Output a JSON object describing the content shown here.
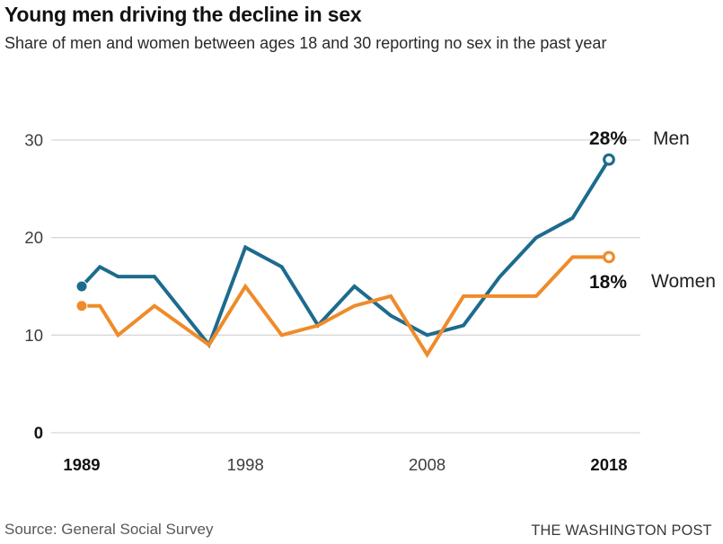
{
  "header": {
    "title": "Young men driving the decline in sex",
    "subtitle": "Share of men and women between ages 18 and 30 reporting no sex in the past year"
  },
  "chart_data": {
    "type": "line",
    "title": "Young men driving the decline in sex",
    "subtitle": "Share of men and women between ages 18 and 30 reporting no sex in the past year",
    "x": [
      1989,
      1990,
      1991,
      1993,
      1996,
      1998,
      2000,
      2002,
      2004,
      2006,
      2008,
      2010,
      2012,
      2014,
      2016,
      2018
    ],
    "series": [
      {
        "name": "Men",
        "color": "#1d6b8e",
        "end_label": "28%",
        "values": [
          15,
          17,
          16,
          16,
          9,
          19,
          17,
          11,
          15,
          12,
          10,
          11,
          16,
          20,
          22,
          28
        ]
      },
      {
        "name": "Women",
        "color": "#ef8b2a",
        "end_label": "18%",
        "values": [
          13,
          13,
          10,
          13,
          9,
          15,
          10,
          11,
          13,
          14,
          8,
          14,
          14,
          14,
          18,
          18
        ]
      }
    ],
    "xlim": [
      1989,
      2018
    ],
    "ylim": [
      0,
      30
    ],
    "grid": true,
    "legend_position": "right of line ends",
    "xticks": [
      {
        "label": "1989",
        "year": 1989,
        "bold": true
      },
      {
        "label": "1998",
        "year": 1998,
        "bold": false
      },
      {
        "label": "2008",
        "year": 2008,
        "bold": false
      },
      {
        "label": "2018",
        "year": 2018,
        "bold": true
      }
    ],
    "yticks": [
      {
        "label": "30",
        "value": 30,
        "bold": false
      },
      {
        "label": "20",
        "value": 20,
        "bold": false
      },
      {
        "label": "10",
        "value": 10,
        "bold": false
      },
      {
        "label": "0",
        "value": 0,
        "bold": true
      }
    ]
  },
  "footer": {
    "source": "Source: General Social Survey",
    "credit": "THE WASHINGTON POST"
  },
  "colors": {
    "men_line": "#1d6b8e",
    "women_line": "#ef8b2a",
    "gridline": "#d8d8d8",
    "tick_regular": "#3d3d3d",
    "tick_bold": "#121212"
  }
}
